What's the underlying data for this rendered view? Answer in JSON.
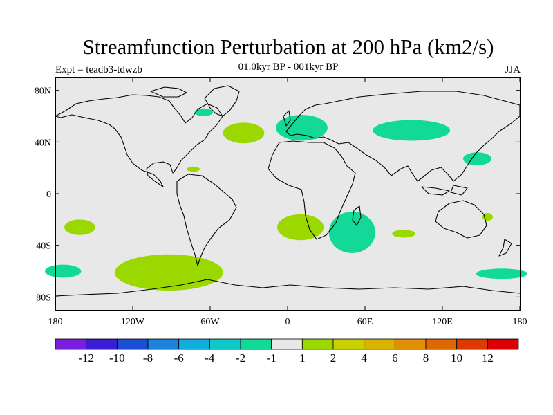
{
  "title": "Streamfunction Perturbation at 200 hPa (km2/s)",
  "experiment": "Expt = teadb3-tdwzb",
  "period": "01.0kyr BP - 001kyr BP",
  "season": "JJA",
  "map": {
    "projection": "cylindrical-equidistant",
    "lon_range": [
      -180,
      180
    ],
    "lat_range": [
      -90,
      90
    ],
    "lat_ticks": [
      {
        "value": 80,
        "label": "80N"
      },
      {
        "value": 40,
        "label": "40N"
      },
      {
        "value": 0,
        "label": "0"
      },
      {
        "value": -40,
        "label": "40S"
      },
      {
        "value": -80,
        "label": "80S"
      }
    ],
    "lon_ticks": [
      {
        "value": -180,
        "label": "180"
      },
      {
        "value": -120,
        "label": "120W"
      },
      {
        "value": -60,
        "label": "60W"
      },
      {
        "value": 0,
        "label": "0"
      },
      {
        "value": 60,
        "label": "60E"
      },
      {
        "value": 120,
        "label": "120E"
      },
      {
        "value": 180,
        "label": "180"
      }
    ],
    "background_color": "#e8e8e8"
  },
  "colorbar": {
    "colors": [
      "#7a1ee0",
      "#3a1ed6",
      "#1a4fd4",
      "#1a84dc",
      "#10aedc",
      "#10c8c8",
      "#12d898",
      "#e8e8e8",
      "#9ad800",
      "#c8d000",
      "#dab200",
      "#e09000",
      "#e06800",
      "#dc3a00",
      "#dc0000"
    ],
    "labels": [
      "-12",
      "-10",
      "-8",
      "-6",
      "-4",
      "-2",
      "-1",
      "1",
      "2",
      "4",
      "6",
      "8",
      "10",
      "12"
    ]
  },
  "anomalies": [
    {
      "lon": 11,
      "lat": 51,
      "rlon": 20,
      "rlat": 10,
      "color": "#12d898"
    },
    {
      "lon": 96,
      "lat": 49,
      "rlon": 30,
      "rlat": 8,
      "color": "#12d898"
    },
    {
      "lon": -34,
      "lat": 47,
      "rlon": 16,
      "rlat": 8,
      "color": "#9ad800"
    },
    {
      "lon": -65,
      "lat": 63,
      "rlon": 7,
      "rlat": 3,
      "color": "#12d898"
    },
    {
      "lon": 147,
      "lat": 27,
      "rlon": 11,
      "rlat": 5,
      "color": "#12d898"
    },
    {
      "lon": -73,
      "lat": 19,
      "rlon": 5,
      "rlat": 2,
      "color": "#9ad800"
    },
    {
      "lon": -161,
      "lat": -26,
      "rlon": 12,
      "rlat": 6,
      "color": "#9ad800"
    },
    {
      "lon": 10,
      "lat": -26,
      "rlon": 18,
      "rlat": 10,
      "color": "#9ad800"
    },
    {
      "lon": 50,
      "lat": -30,
      "rlon": 18,
      "rlat": 16,
      "color": "#12d898"
    },
    {
      "lon": 90,
      "lat": -31,
      "rlon": 9,
      "rlat": 3,
      "color": "#9ad800"
    },
    {
      "lon": 155,
      "lat": -18,
      "rlon": 4,
      "rlat": 3,
      "color": "#9ad800"
    },
    {
      "lon": -92,
      "lat": -61,
      "rlon": 42,
      "rlat": 14,
      "color": "#9ad800"
    },
    {
      "lon": -174,
      "lat": -60,
      "rlon": 14,
      "rlat": 5,
      "color": "#12d898"
    },
    {
      "lon": 166,
      "lat": -62,
      "rlon": 20,
      "rlat": 4,
      "color": "#12d898"
    }
  ]
}
